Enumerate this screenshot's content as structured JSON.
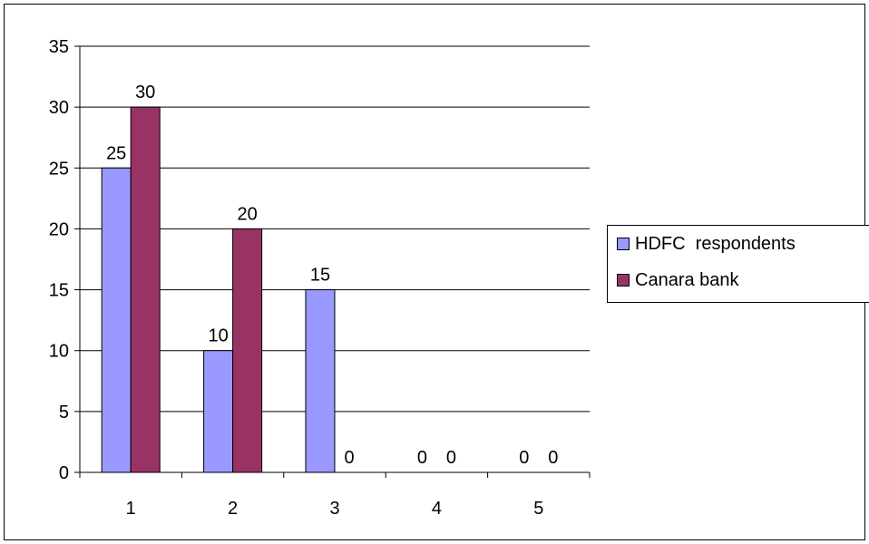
{
  "chart_data": {
    "type": "bar",
    "categories": [
      "1",
      "2",
      "3",
      "4",
      "5"
    ],
    "series": [
      {
        "name": "HDFC  respondents",
        "color": "#9999ff",
        "values": [
          25,
          10,
          15,
          null,
          null
        ]
      },
      {
        "name": "Canara bank",
        "color": "#993366",
        "values": [
          30,
          20,
          0,
          0,
          0
        ]
      }
    ],
    "data_labels": [
      [
        "25",
        "10",
        "15",
        "0",
        "0"
      ],
      [
        "30",
        "20",
        "0",
        "0",
        "0"
      ]
    ],
    "y_ticks": [
      "0",
      "5",
      "10",
      "15",
      "20",
      "25",
      "30",
      "35"
    ],
    "ylim": [
      0,
      35
    ],
    "y_step": 5,
    "grid": true,
    "legend_position": "right",
    "title": "",
    "xlabel": "",
    "ylabel": ""
  }
}
